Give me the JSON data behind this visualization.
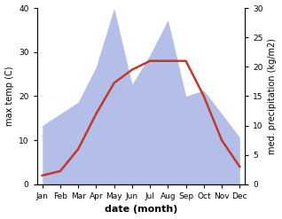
{
  "months": [
    "Jan",
    "Feb",
    "Mar",
    "Apr",
    "May",
    "Jun",
    "Jul",
    "Aug",
    "Sep",
    "Oct",
    "Nov",
    "Dec"
  ],
  "month_positions": [
    0,
    1,
    2,
    3,
    4,
    5,
    6,
    7,
    8,
    9,
    10,
    11
  ],
  "temperature": [
    2,
    3,
    8,
    16,
    23,
    26,
    28,
    28,
    28,
    20,
    10,
    4
  ],
  "precipitation": [
    10,
    12,
    14,
    20,
    30,
    17,
    22,
    28,
    15,
    16,
    12,
    8
  ],
  "temp_color": "#c0392b",
  "precip_fill_color": "#b3bfe8",
  "ylabel_left": "max temp (C)",
  "ylabel_right": "med. precipitation (kg/m2)",
  "xlabel": "date (month)",
  "ylim_left": [
    0,
    40
  ],
  "ylim_right": [
    0,
    30
  ],
  "yticks_left": [
    0,
    10,
    20,
    30,
    40
  ],
  "yticks_right": [
    0,
    5,
    10,
    15,
    20,
    25,
    30
  ],
  "background_color": "#ffffff"
}
